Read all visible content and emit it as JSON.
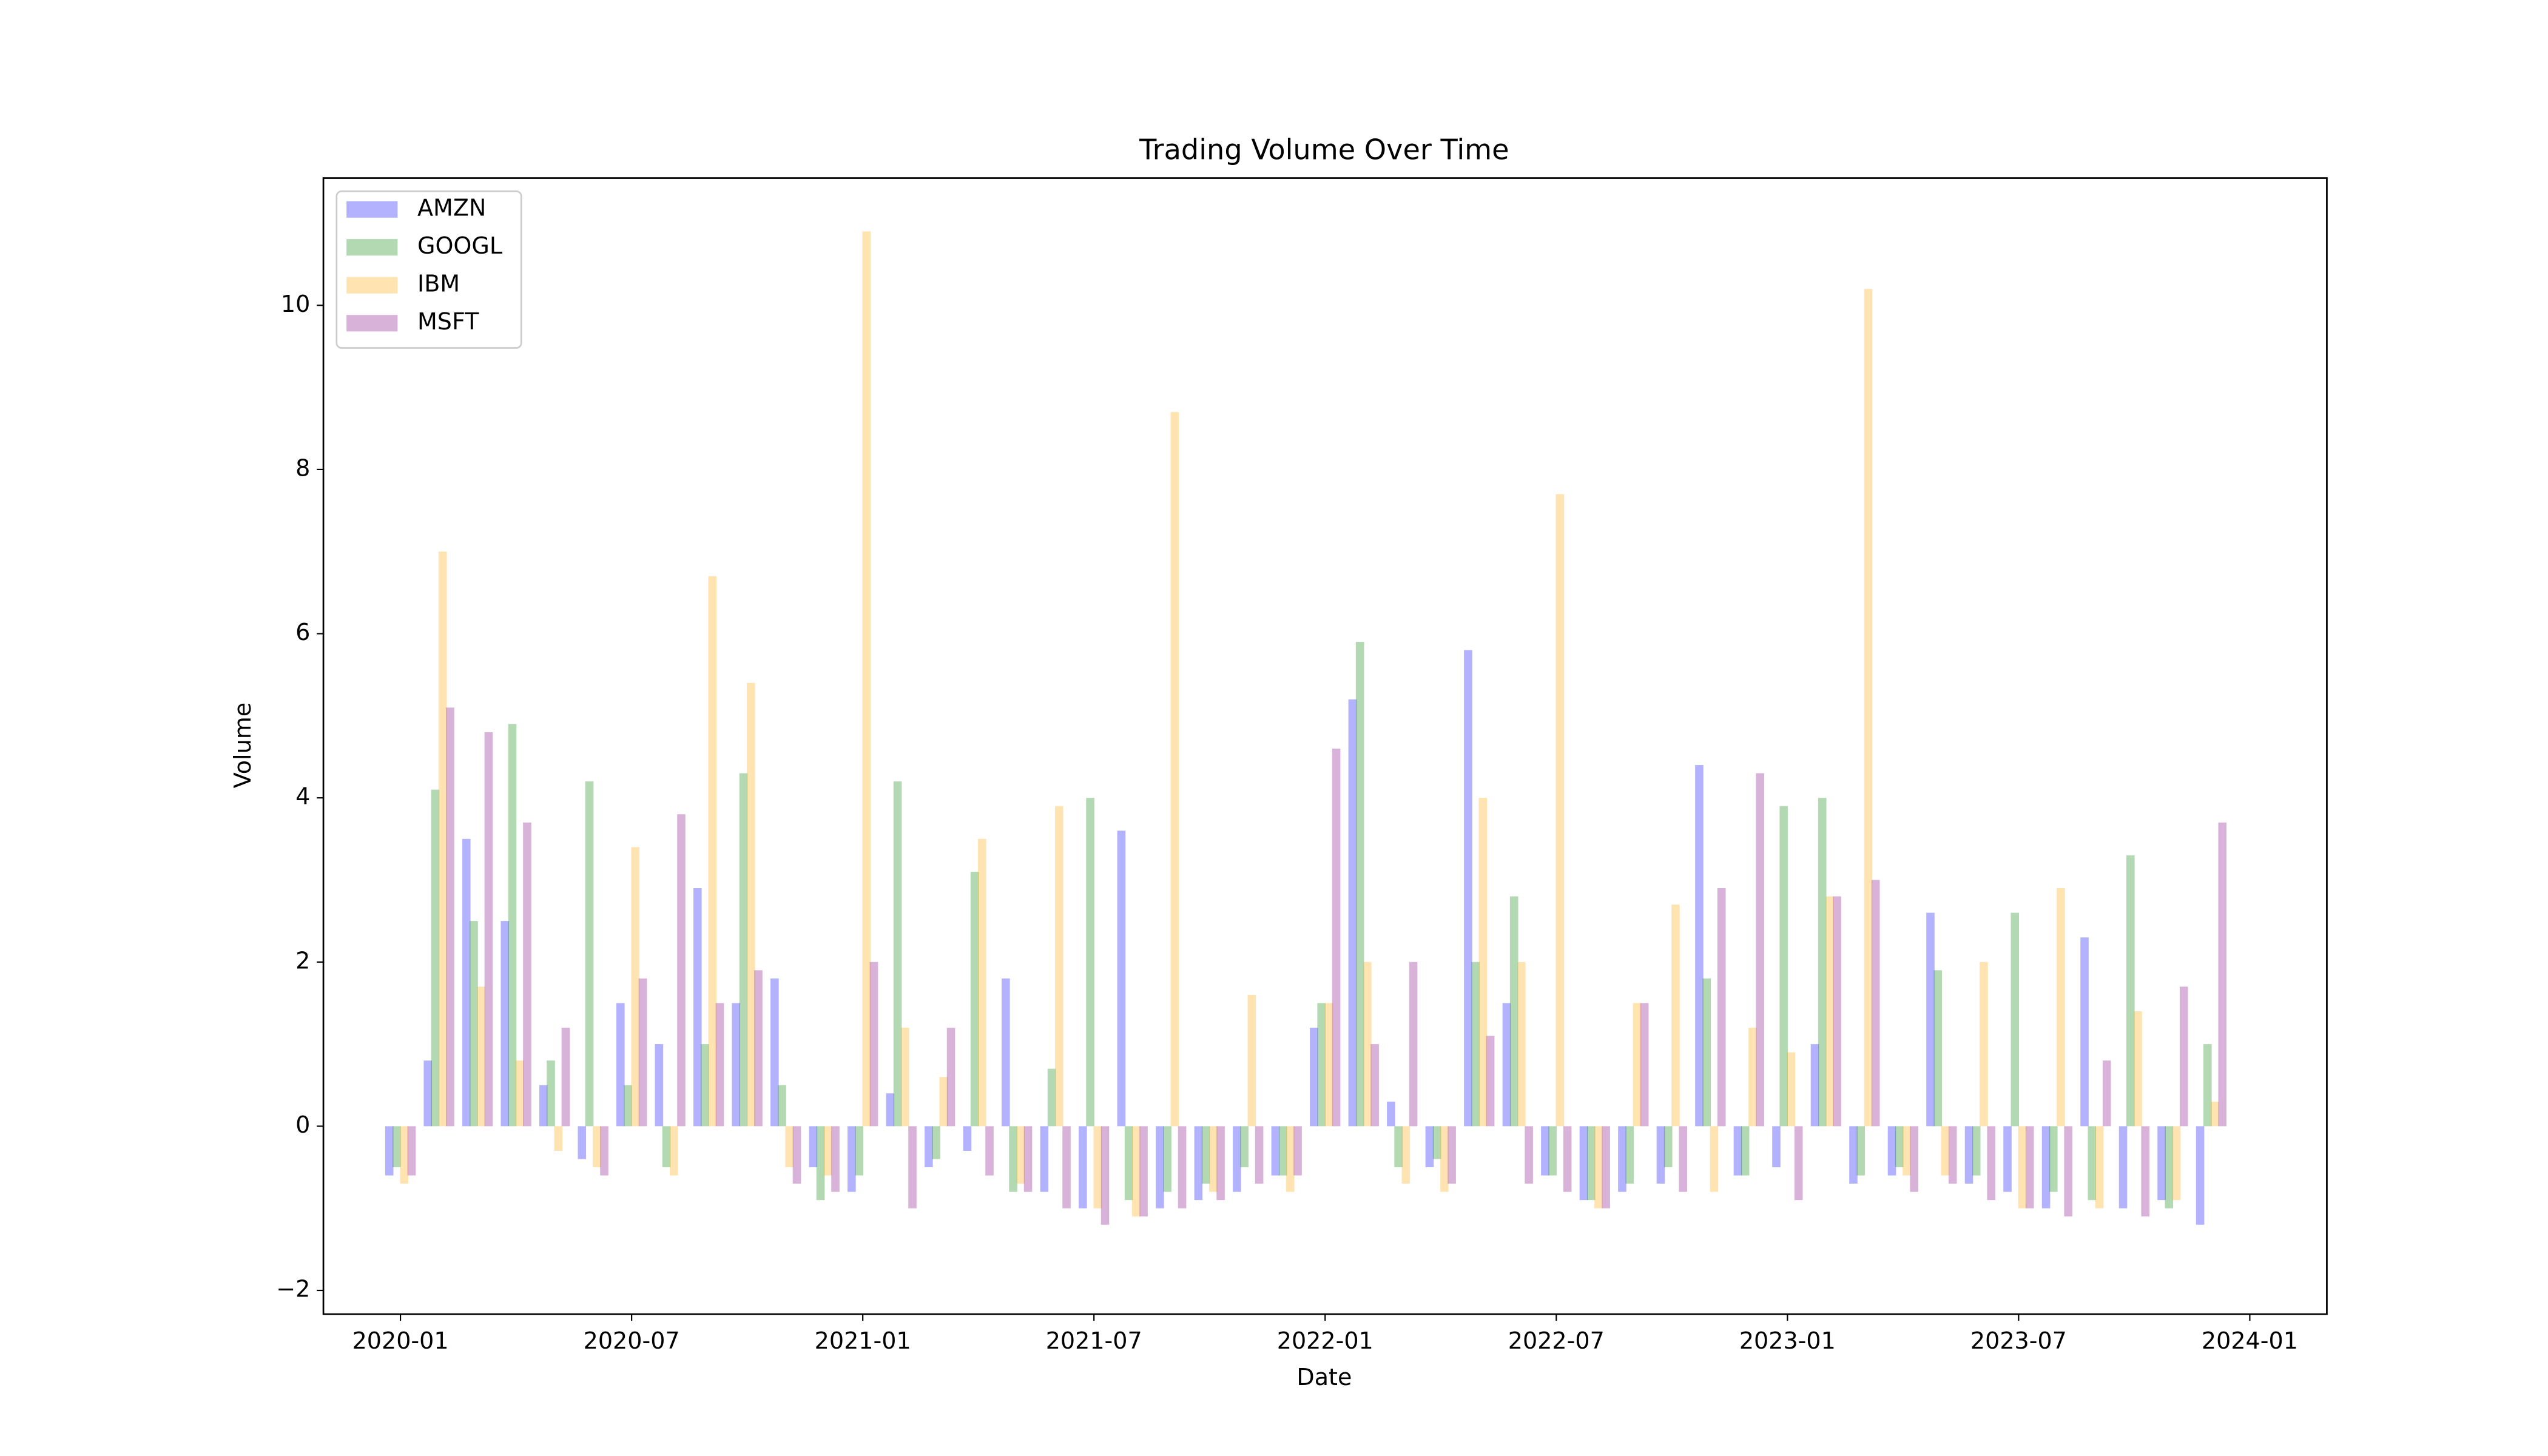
{
  "chart_data": {
    "type": "bar",
    "title": "Trading Volume Over Time",
    "x_label": "Date",
    "y_label": "Volume",
    "x": [
      "2020-01",
      "2020-02",
      "2020-03",
      "2020-04",
      "2020-05",
      "2020-06",
      "2020-07",
      "2020-08",
      "2020-09",
      "2020-10",
      "2020-11",
      "2020-12",
      "2021-01",
      "2021-02",
      "2021-03",
      "2021-04",
      "2021-05",
      "2021-06",
      "2021-07",
      "2021-08",
      "2021-09",
      "2021-10",
      "2021-11",
      "2021-12",
      "2022-01",
      "2022-02",
      "2022-03",
      "2022-04",
      "2022-05",
      "2022-06",
      "2022-07",
      "2022-08",
      "2022-09",
      "2022-10",
      "2022-11",
      "2022-12",
      "2023-01",
      "2023-02",
      "2023-03",
      "2023-04",
      "2023-05",
      "2023-06",
      "2023-07",
      "2023-08",
      "2023-09",
      "2023-10",
      "2023-11",
      "2023-12"
    ],
    "series": [
      {
        "name": "AMZN",
        "color": "#0000ff",
        "values": [
          -0.6,
          0.8,
          3.5,
          2.5,
          0.5,
          -0.4,
          1.5,
          1.0,
          2.9,
          1.5,
          1.8,
          -0.5,
          -0.8,
          0.4,
          -0.5,
          -0.3,
          1.8,
          -0.8,
          -1.0,
          3.6,
          -1.0,
          -0.9,
          -0.8,
          -0.6,
          1.2,
          5.2,
          0.3,
          -0.5,
          5.8,
          1.5,
          -0.6,
          -0.9,
          -0.8,
          -0.7,
          4.4,
          -0.6,
          -0.5,
          1.0,
          -0.7,
          -0.6,
          2.6,
          -0.7,
          -0.8,
          -1.0,
          2.3,
          -1.0,
          -0.9,
          -1.2
        ]
      },
      {
        "name": "GOOGL",
        "color": "#008000",
        "values": [
          -0.5,
          4.1,
          2.5,
          4.9,
          0.8,
          4.2,
          0.5,
          -0.5,
          1.0,
          4.3,
          0.5,
          -0.9,
          -0.6,
          4.2,
          -0.4,
          3.1,
          -0.8,
          0.7,
          4.0,
          -0.9,
          -0.8,
          -0.7,
          -0.5,
          -0.6,
          1.5,
          5.9,
          -0.5,
          -0.4,
          2.0,
          2.8,
          -0.6,
          -0.9,
          -0.7,
          -0.5,
          1.8,
          -0.6,
          3.9,
          4.0,
          -0.6,
          -0.5,
          1.9,
          -0.6,
          2.6,
          -0.8,
          -0.9,
          3.3,
          -1.0,
          1.0
        ]
      },
      {
        "name": "IBM",
        "color": "#ffa500",
        "values": [
          -0.7,
          7.0,
          1.7,
          0.8,
          -0.3,
          -0.5,
          3.4,
          -0.6,
          6.7,
          5.4,
          -0.5,
          -0.6,
          10.9,
          1.2,
          0.6,
          3.5,
          -0.7,
          3.9,
          -1.0,
          -1.1,
          8.7,
          -0.8,
          1.6,
          -0.8,
          1.5,
          2.0,
          -0.7,
          -0.8,
          4.0,
          2.0,
          7.7,
          -1.0,
          1.5,
          2.7,
          -0.8,
          1.2,
          0.9,
          2.8,
          10.2,
          -0.6,
          -0.6,
          2.0,
          -1.0,
          2.9,
          -1.0,
          1.4,
          -0.9,
          0.3
        ]
      },
      {
        "name": "MSFT",
        "color": "#800080",
        "values": [
          -0.6,
          5.1,
          4.8,
          3.7,
          1.2,
          -0.6,
          1.8,
          3.8,
          1.5,
          1.9,
          -0.7,
          -0.8,
          2.0,
          -1.0,
          1.2,
          -0.6,
          -0.8,
          -1.0,
          -1.2,
          -1.1,
          -1.0,
          -0.9,
          -0.7,
          -0.6,
          4.6,
          1.0,
          2.0,
          -0.7,
          1.1,
          -0.7,
          -0.8,
          -1.0,
          1.5,
          -0.8,
          2.9,
          4.3,
          -0.9,
          2.8,
          3.0,
          -0.8,
          -0.7,
          -0.9,
          -1.0,
          -1.1,
          0.8,
          -1.1,
          1.7,
          3.7
        ]
      }
    ],
    "xlim": [
      "2019-11",
      "2024-03"
    ],
    "xticks": [
      "2020-01",
      "2020-07",
      "2021-01",
      "2021-07",
      "2022-01",
      "2022-07",
      "2023-01",
      "2023-07",
      "2024-01"
    ],
    "ylim": [
      -2.29,
      11.55
    ],
    "yticks": [
      {
        "value": -2,
        "label": "−2"
      },
      0,
      2,
      4,
      6,
      8,
      10
    ],
    "alpha": 0.3,
    "grid": false,
    "legend": "upper left"
  }
}
